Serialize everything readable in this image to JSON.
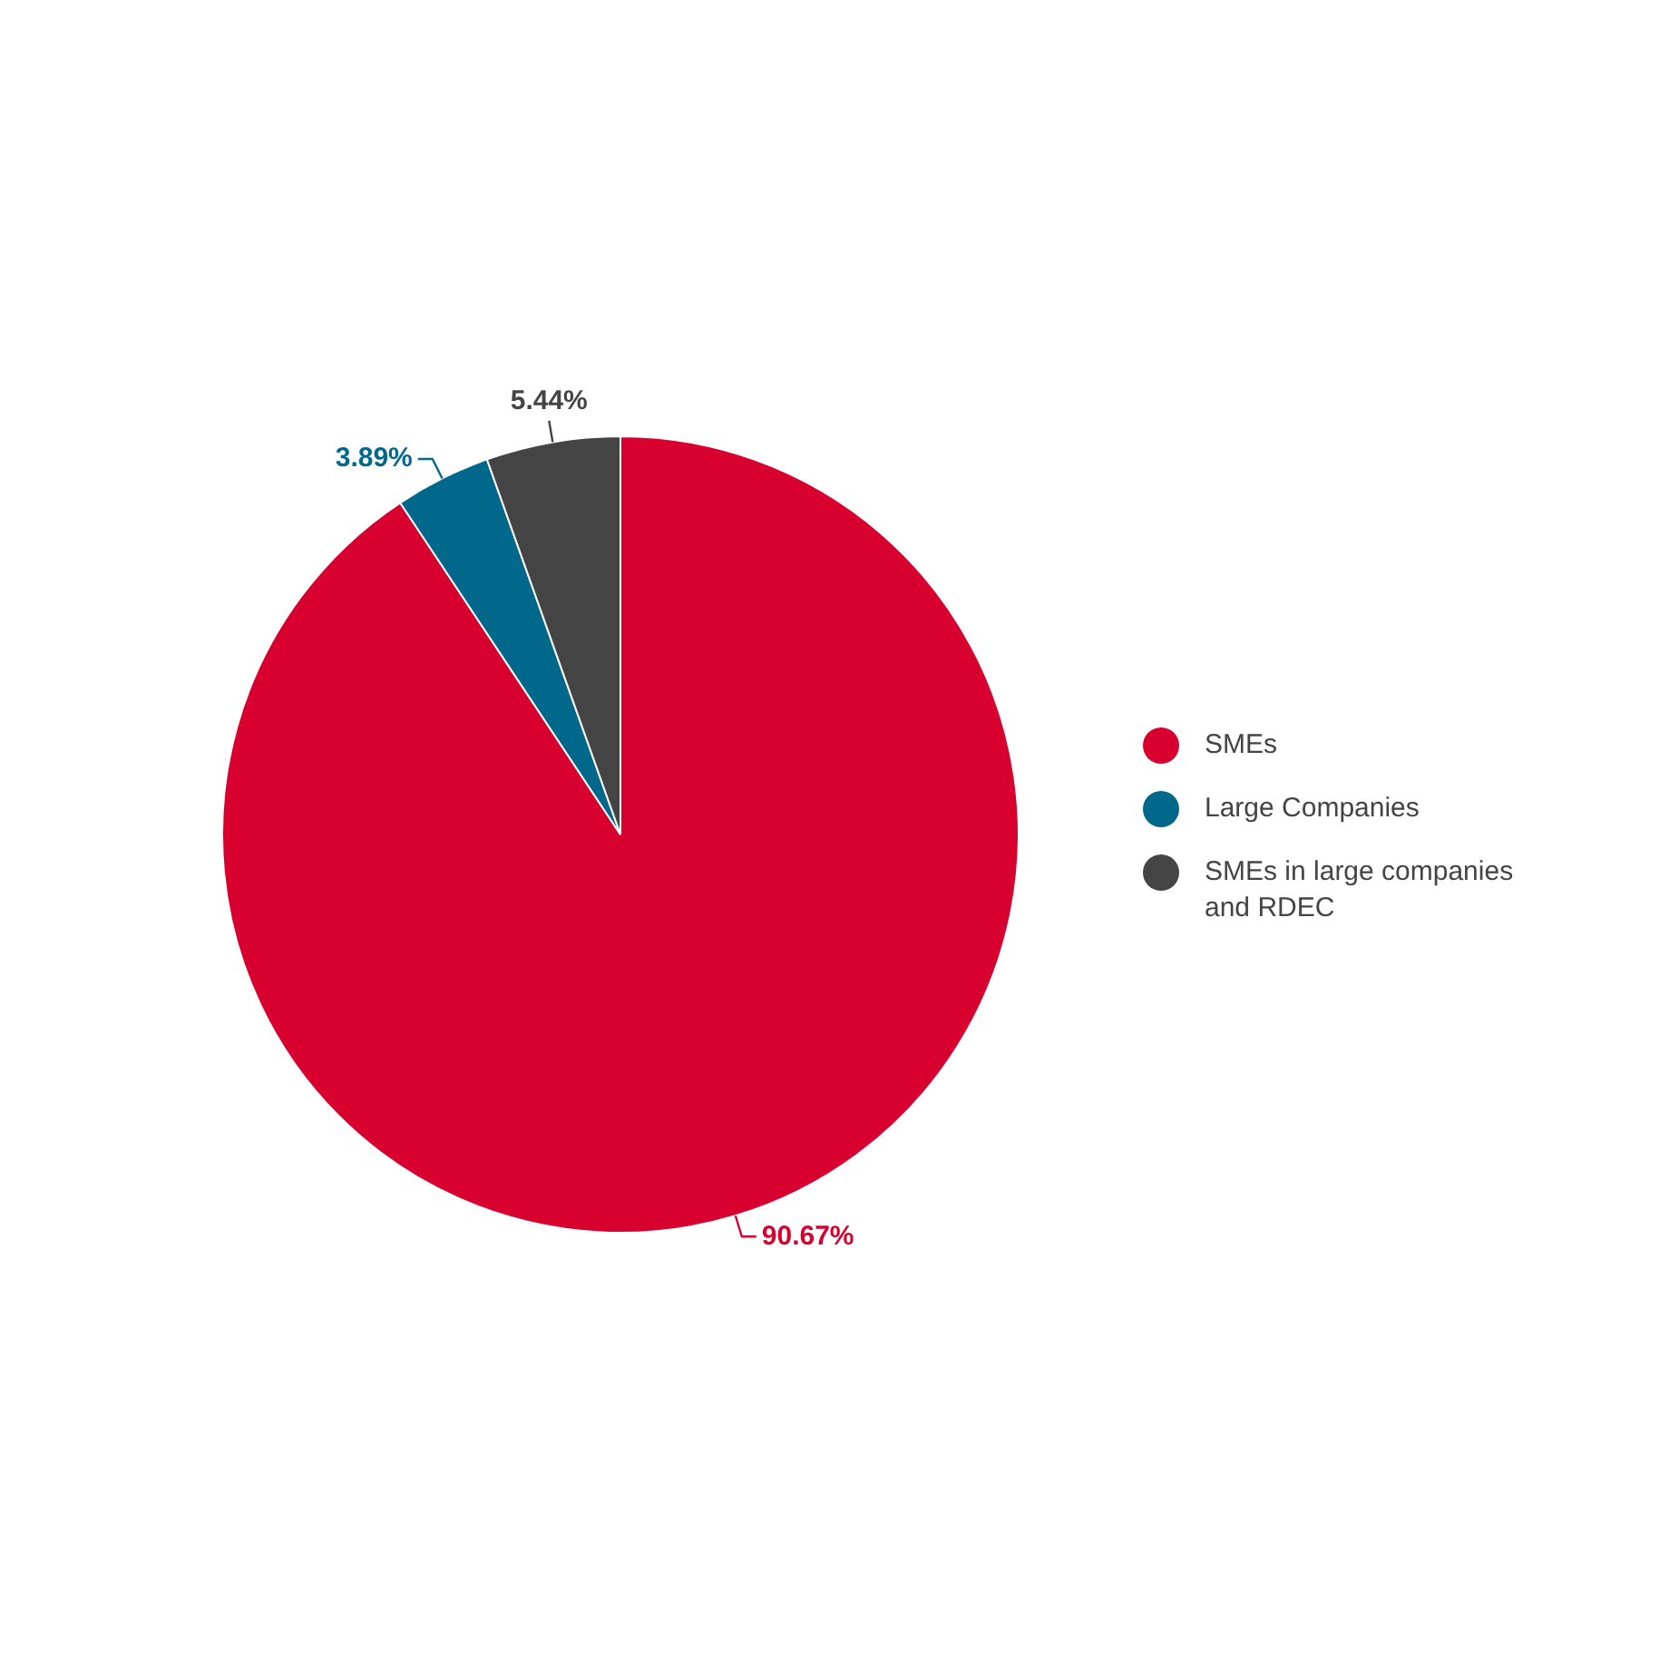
{
  "chart_data": {
    "type": "pie",
    "categories": [
      "SMEs",
      "Large Companies",
      "SMEs in large companies and RDEC"
    ],
    "values": [
      90.67,
      3.89,
      5.44
    ],
    "colors": [
      "#d7002e",
      "#00688b",
      "#444444"
    ],
    "value_labels": [
      "90.67%",
      "3.89%",
      "5.44%"
    ],
    "legend": "right"
  }
}
